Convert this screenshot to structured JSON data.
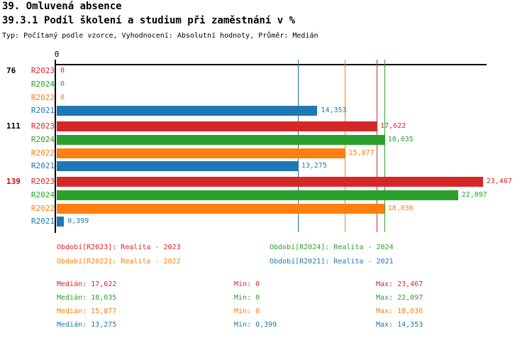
{
  "header": {
    "title": "39. Omluvená absence",
    "subtitle": "39.3.1 Podíl školení a studium při zaměstnání v %",
    "meta": "Typ: Počítaný podle vzorce, Vyhodnocení: Absolutní hodnoty, Průměr: Medián"
  },
  "chart_data": {
    "type": "bar",
    "orientation": "horizontal",
    "title": "39.3.1 Podíl školení a studium při zaměstnání v %",
    "unit": "%",
    "xlim": [
      0,
      23.7
    ],
    "x_axis": {
      "zero_tick": "0"
    },
    "grid": false,
    "series_order": [
      "R2023",
      "R2024",
      "R2022",
      "R2021"
    ],
    "series_colors": {
      "R2023": "#d62728",
      "R2024": "#2ca02c",
      "R2022": "#ff7f0e",
      "R2021": "#1f77b4"
    },
    "groups": [
      {
        "label": "76",
        "label_color": "#000000",
        "bars": [
          {
            "series": "R2023",
            "value": 0,
            "display": "0"
          },
          {
            "series": "R2024",
            "value": 0,
            "display": "0"
          },
          {
            "series": "R2022",
            "value": 0,
            "display": "0"
          },
          {
            "series": "R2021",
            "value": 14.353,
            "display": "14,353"
          }
        ]
      },
      {
        "label": "111",
        "label_color": "#000000",
        "bars": [
          {
            "series": "R2023",
            "value": 17.622,
            "display": "17,622"
          },
          {
            "series": "R2024",
            "value": 18.035,
            "display": "18,035"
          },
          {
            "series": "R2022",
            "value": 15.877,
            "display": "15,877"
          },
          {
            "series": "R2021",
            "value": 13.275,
            "display": "13,275"
          }
        ]
      },
      {
        "label": "139",
        "label_color": "#dd0000",
        "bars": [
          {
            "series": "R2023",
            "value": 23.467,
            "display": "23,467"
          },
          {
            "series": "R2024",
            "value": 22.097,
            "display": "22,097"
          },
          {
            "series": "R2022",
            "value": 18.036,
            "display": "18,036"
          },
          {
            "series": "R2021",
            "value": 0.399,
            "display": "0,399"
          }
        ]
      }
    ],
    "median_lines": [
      {
        "series": "R2023",
        "value": 17.622
      },
      {
        "series": "R2024",
        "value": 18.035
      },
      {
        "series": "R2022",
        "value": 15.877
      },
      {
        "series": "R2021",
        "value": 13.275
      }
    ]
  },
  "legend": {
    "items": [
      {
        "label": "Období[R2023]: Realita - 2023",
        "color": "#d62728"
      },
      {
        "label": "Období[R2024]: Realita - 2024",
        "color": "#2ca02c"
      },
      {
        "label": "Období[R2022]: Realita - 2022",
        "color": "#ff7f0e"
      },
      {
        "label": "Období[R2021]: Realita - 2021",
        "color": "#1f77b4"
      }
    ]
  },
  "stats": {
    "rows": [
      {
        "color": "#d62728",
        "median": "Medián: 17,622",
        "min": "Min: 0",
        "max": "Max: 23,467"
      },
      {
        "color": "#2ca02c",
        "median": "Medián: 18,035",
        "min": "Min: 0",
        "max": "Max: 22,097"
      },
      {
        "color": "#ff7f0e",
        "median": "Medián: 15,877",
        "min": "Min: 0",
        "max": "Max: 18,036"
      },
      {
        "color": "#1f77b4",
        "median": "Medián: 13,275",
        "min": "Min: 0,399",
        "max": "Max: 14,353"
      }
    ]
  }
}
